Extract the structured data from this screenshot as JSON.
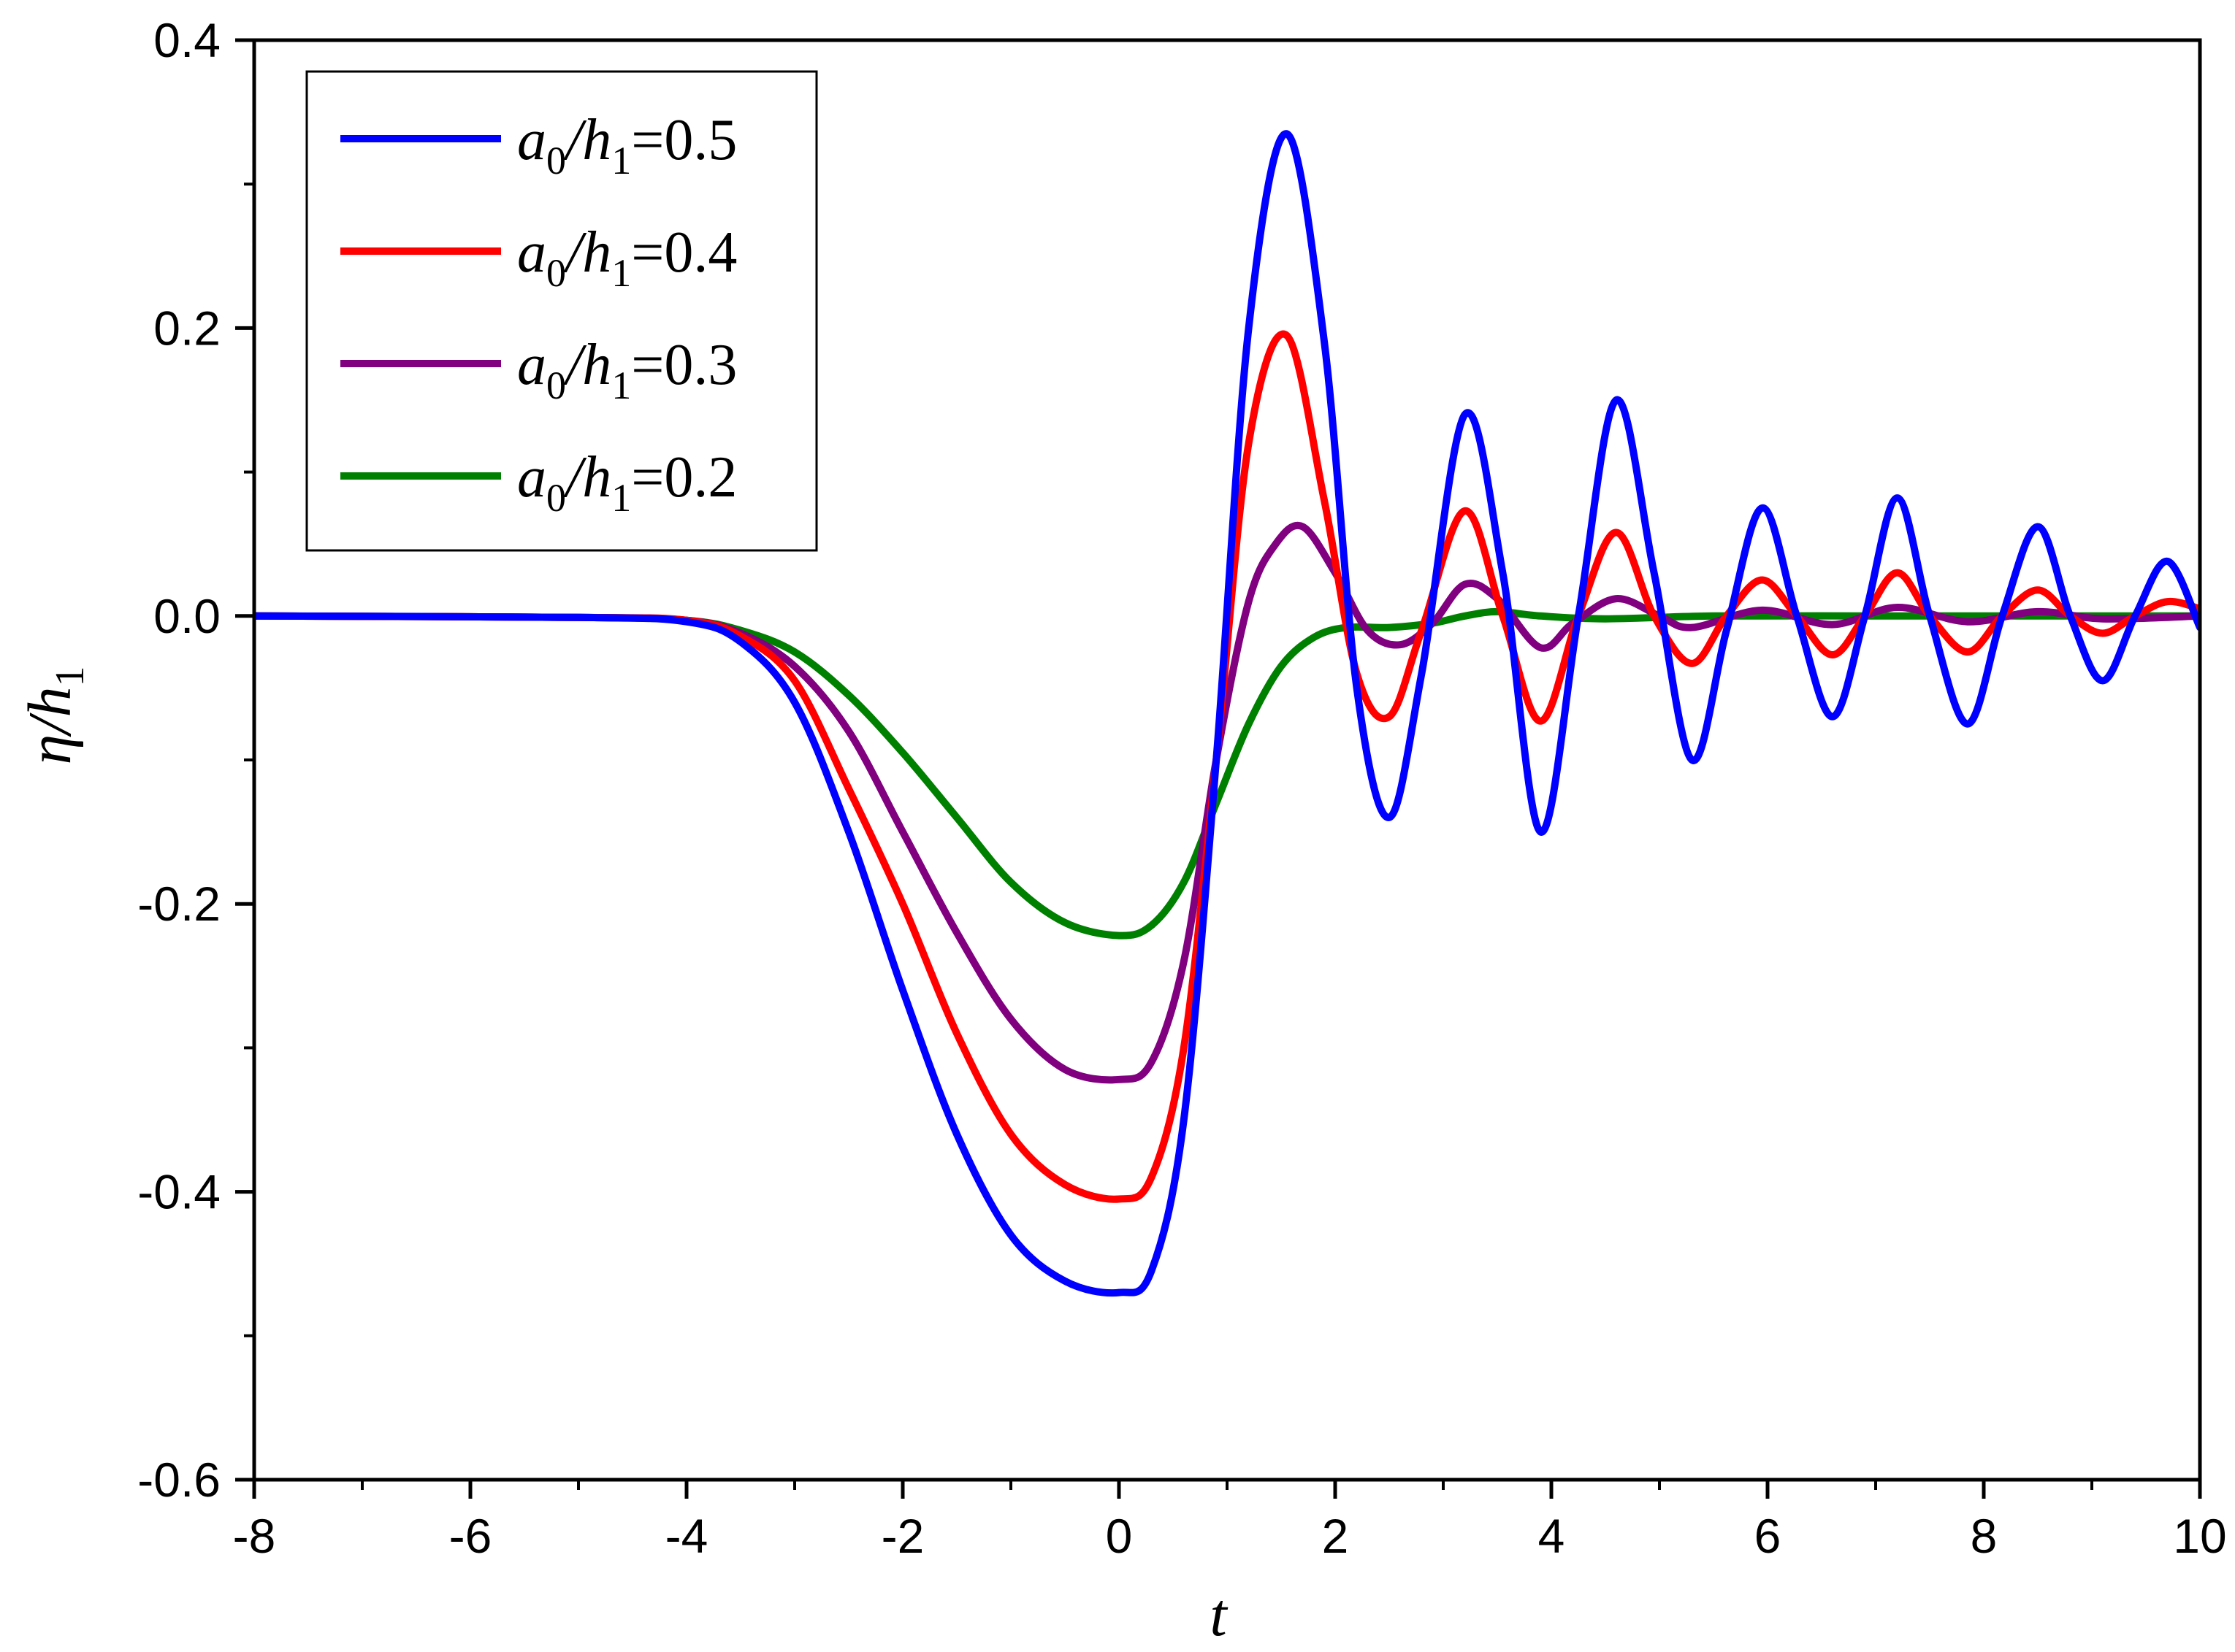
{
  "chart_data": {
    "type": "line",
    "title": "",
    "xlabel": "t",
    "ylabel": {
      "main": "η/h",
      "sub": "1"
    },
    "xlim": [
      -8,
      10
    ],
    "ylim": [
      -0.6,
      0.4
    ],
    "xticks": [
      -8,
      -6,
      -4,
      -2,
      0,
      2,
      4,
      6,
      8,
      10
    ],
    "xtick_labels": [
      "-8",
      "-6",
      "-4",
      "-2",
      "0",
      "2",
      "4",
      "6",
      "8",
      "10"
    ],
    "yticks": [
      -0.6,
      -0.4,
      -0.2,
      0.0,
      0.2,
      0.4
    ],
    "ytick_labels": [
      "-0.6",
      "-0.4",
      "-0.2",
      "0.0",
      "0.2",
      "0.4"
    ],
    "grid": false,
    "legend_position": "top-left",
    "series": [
      {
        "name": "a0/h1=0.5",
        "legend": {
          "a": "a",
          "a_sub": "0",
          "h": "h",
          "h_sub": "1",
          "value": "=0.5"
        },
        "color": "#0000ff",
        "points": [
          [
            -8,
            0
          ],
          [
            -5,
            -0.001
          ],
          [
            -4,
            -0.004
          ],
          [
            -3.5,
            -0.018
          ],
          [
            -3,
            -0.06
          ],
          [
            -2.5,
            -0.15
          ],
          [
            -2,
            -0.26
          ],
          [
            -1.5,
            -0.36
          ],
          [
            -1,
            -0.43
          ],
          [
            -0.5,
            -0.462
          ],
          [
            0,
            -0.47
          ],
          [
            0.3,
            -0.455
          ],
          [
            0.6,
            -0.35
          ],
          [
            0.9,
            -0.1
          ],
          [
            1.2,
            0.2
          ],
          [
            1.55,
            0.335
          ],
          [
            1.9,
            0.19
          ],
          [
            2.2,
            -0.05
          ],
          [
            2.5,
            -0.14
          ],
          [
            2.8,
            -0.04
          ],
          [
            3.2,
            0.14
          ],
          [
            3.55,
            0.03
          ],
          [
            3.9,
            -0.15
          ],
          [
            4.25,
            0.0
          ],
          [
            4.6,
            0.15
          ],
          [
            4.95,
            0.03
          ],
          [
            5.3,
            -0.1
          ],
          [
            5.62,
            -0.01
          ],
          [
            5.95,
            0.075
          ],
          [
            6.27,
            0.0
          ],
          [
            6.6,
            -0.07
          ],
          [
            6.9,
            0.0
          ],
          [
            7.2,
            0.082
          ],
          [
            7.5,
            0.0
          ],
          [
            7.85,
            -0.075
          ],
          [
            8.17,
            0.0
          ],
          [
            8.5,
            0.062
          ],
          [
            8.8,
            0.0
          ],
          [
            9.1,
            -0.045
          ],
          [
            9.4,
            0.0
          ],
          [
            9.7,
            0.038
          ],
          [
            10,
            -0.008
          ]
        ]
      },
      {
        "name": "a0/h1=0.4",
        "legend": {
          "a": "a",
          "a_sub": "0",
          "h": "h",
          "h_sub": "1",
          "value": "=0.4"
        },
        "color": "#ff0000",
        "points": [
          [
            -8,
            0
          ],
          [
            -5,
            -0.001
          ],
          [
            -4,
            -0.003
          ],
          [
            -3.5,
            -0.014
          ],
          [
            -3,
            -0.045
          ],
          [
            -2.5,
            -0.12
          ],
          [
            -2,
            -0.2
          ],
          [
            -1.5,
            -0.29
          ],
          [
            -1,
            -0.36
          ],
          [
            -0.5,
            -0.395
          ],
          [
            0,
            -0.405
          ],
          [
            0.3,
            -0.39
          ],
          [
            0.6,
            -0.3
          ],
          [
            0.9,
            -0.1
          ],
          [
            1.2,
            0.12
          ],
          [
            1.55,
            0.195
          ],
          [
            1.9,
            0.08
          ],
          [
            2.2,
            -0.04
          ],
          [
            2.5,
            -0.07
          ],
          [
            2.8,
            -0.01
          ],
          [
            3.2,
            0.073
          ],
          [
            3.55,
            0.0
          ],
          [
            3.9,
            -0.073
          ],
          [
            4.25,
            0.0
          ],
          [
            4.6,
            0.058
          ],
          [
            4.95,
            0.0
          ],
          [
            5.3,
            -0.033
          ],
          [
            5.62,
            0.0
          ],
          [
            5.95,
            0.025
          ],
          [
            6.27,
            0.0
          ],
          [
            6.6,
            -0.027
          ],
          [
            6.9,
            0.0
          ],
          [
            7.2,
            0.03
          ],
          [
            7.5,
            0.0
          ],
          [
            7.85,
            -0.025
          ],
          [
            8.17,
            0.0
          ],
          [
            8.5,
            0.018
          ],
          [
            8.8,
            0.0
          ],
          [
            9.1,
            -0.012
          ],
          [
            9.4,
            0.0
          ],
          [
            9.7,
            0.01
          ],
          [
            10,
            0.005
          ]
        ]
      },
      {
        "name": "a0/h1=0.3",
        "legend": {
          "a": "a",
          "a_sub": "0",
          "h": "h",
          "h_sub": "1",
          "value": "=0.3"
        },
        "color": "#800080",
        "points": [
          [
            -8,
            0
          ],
          [
            -5,
            -0.001
          ],
          [
            -4,
            -0.003
          ],
          [
            -3.5,
            -0.012
          ],
          [
            -3,
            -0.035
          ],
          [
            -2.5,
            -0.08
          ],
          [
            -2,
            -0.15
          ],
          [
            -1.5,
            -0.22
          ],
          [
            -1,
            -0.28
          ],
          [
            -0.5,
            -0.315
          ],
          [
            0,
            -0.322
          ],
          [
            0.3,
            -0.31
          ],
          [
            0.6,
            -0.24
          ],
          [
            0.9,
            -0.1
          ],
          [
            1.2,
            0.01
          ],
          [
            1.45,
            0.05
          ],
          [
            1.7,
            0.062
          ],
          [
            2.0,
            0.03
          ],
          [
            2.3,
            -0.01
          ],
          [
            2.6,
            -0.02
          ],
          [
            2.9,
            -0.005
          ],
          [
            3.2,
            0.022
          ],
          [
            3.5,
            0.012
          ],
          [
            3.9,
            -0.022
          ],
          [
            4.2,
            -0.005
          ],
          [
            4.6,
            0.012
          ],
          [
            5.0,
            0.0
          ],
          [
            5.3,
            -0.008
          ],
          [
            5.95,
            0.004
          ],
          [
            6.6,
            -0.006
          ],
          [
            7.2,
            0.006
          ],
          [
            7.85,
            -0.004
          ],
          [
            8.5,
            0.003
          ],
          [
            9.1,
            -0.002
          ],
          [
            10,
            0.0
          ]
        ]
      },
      {
        "name": "a0/h1=0.2",
        "legend": {
          "a": "a",
          "a_sub": "0",
          "h": "h",
          "h_sub": "1",
          "value": "=0.2"
        },
        "color": "#008000",
        "points": [
          [
            -8,
            0
          ],
          [
            -5,
            -0.001
          ],
          [
            -4,
            -0.003
          ],
          [
            -3.5,
            -0.01
          ],
          [
            -3,
            -0.025
          ],
          [
            -2.5,
            -0.055
          ],
          [
            -2,
            -0.095
          ],
          [
            -1.5,
            -0.14
          ],
          [
            -1,
            -0.185
          ],
          [
            -0.5,
            -0.213
          ],
          [
            0,
            -0.222
          ],
          [
            0.3,
            -0.215
          ],
          [
            0.6,
            -0.185
          ],
          [
            0.9,
            -0.13
          ],
          [
            1.2,
            -0.075
          ],
          [
            1.5,
            -0.035
          ],
          [
            1.8,
            -0.015
          ],
          [
            2.1,
            -0.008
          ],
          [
            2.5,
            -0.008
          ],
          [
            2.9,
            -0.005
          ],
          [
            3.2,
            0.0
          ],
          [
            3.5,
            0.003
          ],
          [
            3.9,
            0.0
          ],
          [
            4.5,
            -0.002
          ],
          [
            5.5,
            0.0
          ],
          [
            7,
            0.0
          ],
          [
            8.5,
            0.0
          ],
          [
            10,
            0.0
          ]
        ]
      }
    ]
  }
}
